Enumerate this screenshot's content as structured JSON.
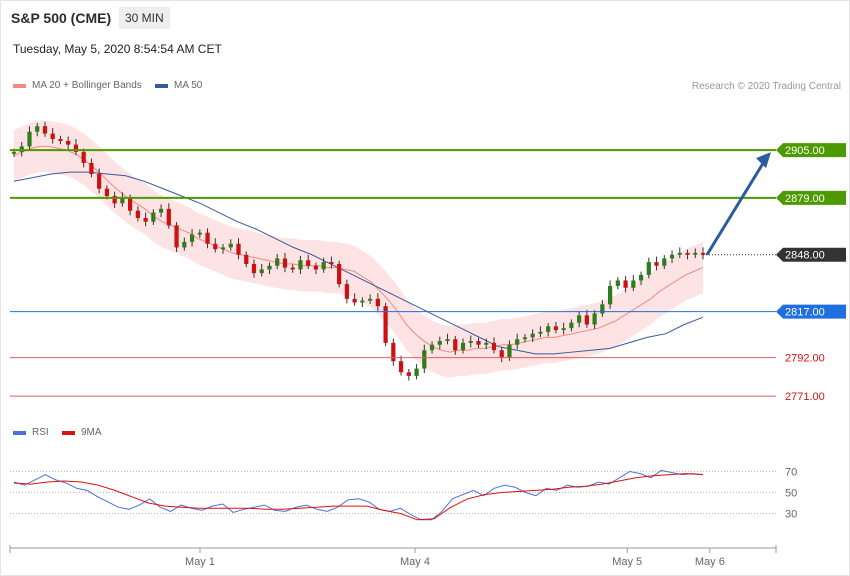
{
  "header": {
    "title": "S&P 500 (CME)",
    "interval": "30 MIN",
    "timestamp": "Tuesday, May 5, 2020 8:54:54 AM CET"
  },
  "legend": {
    "ma20": "MA 20 + Bollinger Bands",
    "ma50": "MA 50",
    "rsi": "RSI",
    "rsi_ma": "9MA"
  },
  "credit": "Research © 2020 Trading Central",
  "colors": {
    "ma20": "#f28b82",
    "ma50": "#3b5998",
    "bands_fill": "#fde0e0",
    "candle_up": "#2e7d1a",
    "candle_down": "#cc1111",
    "resistance": "#4c9a00",
    "pivot": "#1f6fe0",
    "support": "#e06060",
    "last": "#333333",
    "rsi": "#4a72d8",
    "rsi_ma": "#dd1111",
    "arrow": "#2a5c9e"
  },
  "chart_data": {
    "type": "candlestick",
    "price_range": [
      2758,
      2935
    ],
    "x_ticks": [
      "May 1",
      "May 4",
      "May 5",
      "May 6"
    ],
    "levels": [
      {
        "label": "2905.00",
        "value": 2905.0,
        "kind": "resistance"
      },
      {
        "label": "2879.00",
        "value": 2879.0,
        "kind": "resistance"
      },
      {
        "label": "2848.00",
        "value": 2848.0,
        "kind": "last"
      },
      {
        "label": "2817.00",
        "value": 2817.0,
        "kind": "pivot"
      },
      {
        "label": "2792.00",
        "value": 2792.0,
        "kind": "support"
      },
      {
        "label": "2771.00",
        "value": 2771.0,
        "kind": "support"
      }
    ],
    "forecast_target": 2905.0,
    "closes": [
      2904,
      2907,
      2915,
      2918,
      2914,
      2911,
      2910,
      2908,
      2904,
      2898,
      2892,
      2884,
      2880,
      2876,
      2879,
      2872,
      2868,
      2866,
      2871,
      2873,
      2864,
      2852,
      2855,
      2859,
      2860,
      2854,
      2851,
      2852,
      2854,
      2848,
      2843,
      2838,
      2840,
      2842,
      2846,
      2841,
      2840,
      2845,
      2842,
      2840,
      2844,
      2843,
      2832,
      2824,
      2822,
      2823,
      2824,
      2820,
      2800,
      2790,
      2784,
      2782,
      2786,
      2796,
      2799,
      2801,
      2802,
      2796,
      2800,
      2801,
      2799,
      2800,
      2796,
      2792,
      2799,
      2802,
      2803,
      2805,
      2806,
      2809,
      2807,
      2808,
      2811,
      2815,
      2810,
      2816,
      2821,
      2831,
      2834,
      2830,
      2834,
      2837,
      2844,
      2842,
      2846,
      2848,
      2849,
      2848,
      2849,
      2848
    ],
    "ma20": [
      2902,
      2904,
      2906,
      2907,
      2907,
      2906,
      2905,
      2903,
      2900,
      2896,
      2892,
      2887,
      2883,
      2879,
      2876,
      2873,
      2869,
      2866,
      2864,
      2862,
      2860,
      2857,
      2855,
      2853,
      2851,
      2849,
      2848,
      2847,
      2846,
      2845,
      2844,
      2843,
      2843,
      2842,
      2842,
      2842,
      2841,
      2841,
      2840,
      2839,
      2836,
      2833,
      2828,
      2823,
      2817,
      2810,
      2805,
      2801,
      2798,
      2796,
      2795,
      2796,
      2796,
      2797,
      2797,
      2798,
      2799,
      2799,
      2800,
      2801,
      2802,
      2803,
      2803,
      2804,
      2805,
      2806,
      2807,
      2808,
      2810,
      2812,
      2815,
      2818,
      2821,
      2824,
      2828,
      2831,
      2834,
      2837,
      2839,
      2841
    ],
    "ma50": [
      2888,
      2890,
      2892,
      2893,
      2893,
      2892,
      2891,
      2888,
      2884,
      2880,
      2876,
      2871,
      2866,
      2862,
      2857,
      2852,
      2848,
      2843,
      2838,
      2833,
      2828,
      2823,
      2818,
      2813,
      2808,
      2803,
      2798,
      2796,
      2794,
      2794,
      2795,
      2796,
      2797,
      2800,
      2803,
      2805,
      2810,
      2814
    ],
    "rsi_axis": [
      70,
      50,
      30
    ],
    "rsi": [
      60,
      57,
      62,
      67,
      62,
      59,
      54,
      52,
      46,
      41,
      36,
      34,
      38,
      44,
      36,
      32,
      38,
      35,
      33,
      37,
      39,
      31,
      34,
      36,
      38,
      33,
      32,
      36,
      38,
      34,
      32,
      36,
      43,
      44,
      41,
      34,
      32,
      35,
      29,
      24,
      24,
      32,
      44,
      48,
      52,
      47,
      54,
      57,
      55,
      50,
      47,
      54,
      52,
      57,
      55,
      56,
      60,
      58,
      64,
      70,
      68,
      64,
      71,
      69,
      67,
      68,
      67
    ],
    "rsi_ma": [
      59,
      58,
      60,
      61,
      60,
      57,
      52,
      46,
      40,
      37,
      36,
      35,
      35,
      35,
      35,
      34,
      34,
      35,
      36,
      37,
      37,
      37,
      33,
      30,
      24,
      25,
      36,
      44,
      48,
      50,
      51,
      52,
      53,
      55,
      56,
      58,
      61,
      64,
      66,
      67,
      68,
      67
    ]
  }
}
